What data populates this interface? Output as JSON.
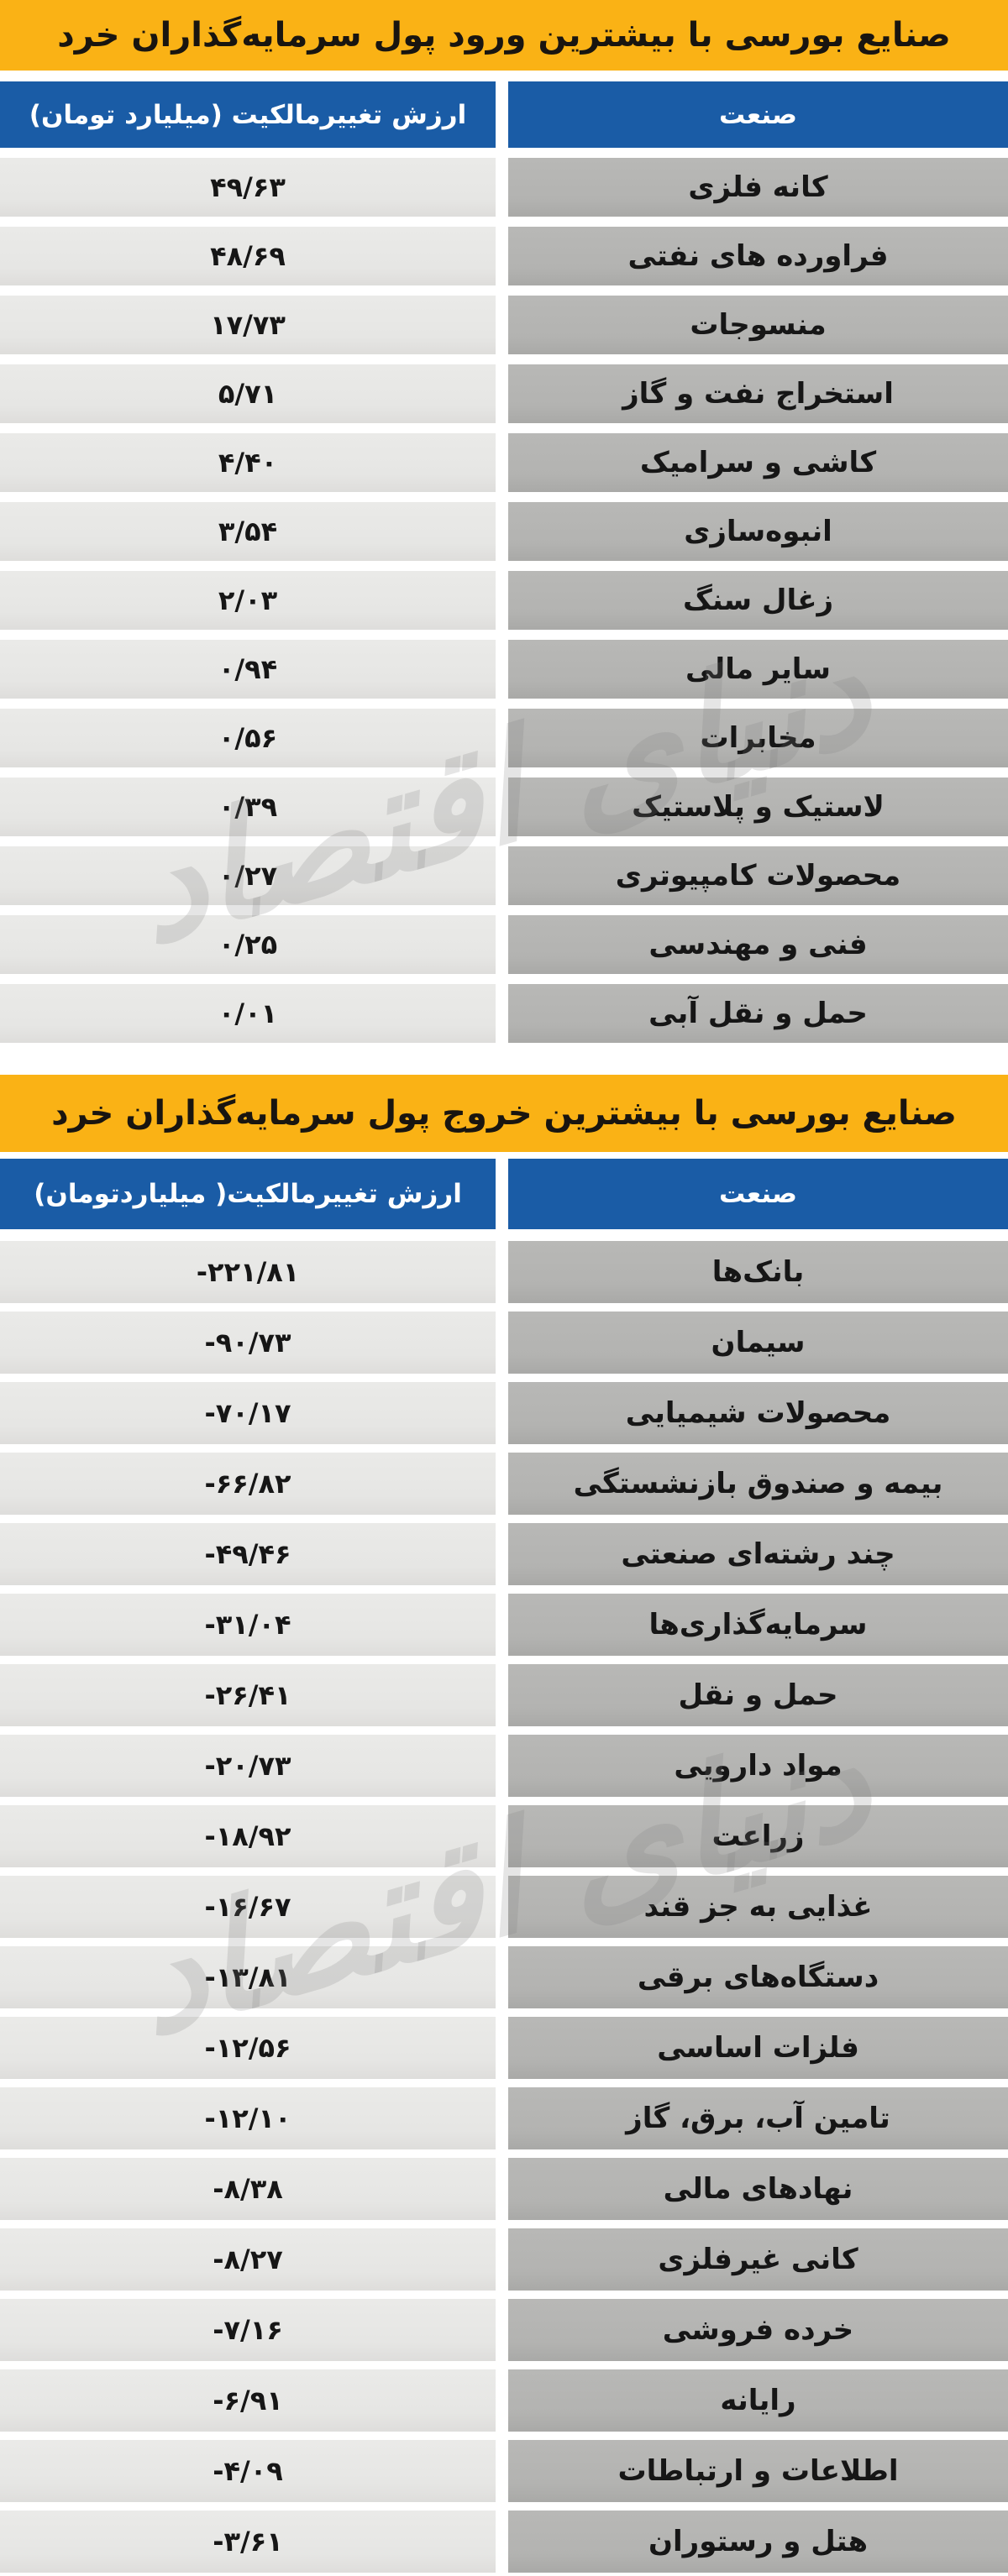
{
  "page": {
    "background": "#ffffff",
    "accent_yellow": "#FAB215",
    "accent_blue": "#1A5CA6",
    "industry_cell_grey": "#B3B3B1",
    "value_cell_grey": "#E6E6E4"
  },
  "watermark": {
    "text": "دنیای اقتصاد"
  },
  "tables": [
    {
      "title": "صنایع بورسی با بیشترین ورود پول سرمایه‌گذاران خرد",
      "headers": {
        "industry": "صنعت",
        "value": "ارزش تغییرمالکیت (میلیارد تومان)"
      },
      "rows": [
        {
          "industry": "کانه فلزی",
          "value": "۴۹/۶۳"
        },
        {
          "industry": "فراورده های نفتی",
          "value": "۴۸/۶۹"
        },
        {
          "industry": "منسوجات",
          "value": "۱۷/۷۳"
        },
        {
          "industry": "استخراج نفت و گاز",
          "value": "۵/۷۱"
        },
        {
          "industry": "کاشی و سرامیک",
          "value": "۴/۴۰"
        },
        {
          "industry": "انبوه‌سازی",
          "value": "۳/۵۴"
        },
        {
          "industry": "زغال سنگ",
          "value": "۲/۰۳"
        },
        {
          "industry": "سایر مالی",
          "value": "۰/۹۴"
        },
        {
          "industry": "مخابرات",
          "value": "۰/۵۶"
        },
        {
          "industry": "لاستیک و پلاستیک",
          "value": "۰/۳۹"
        },
        {
          "industry": "محصولات کامپیوتری",
          "value": "۰/۲۷"
        },
        {
          "industry": "فنی و مهندسی",
          "value": "۰/۲۵"
        },
        {
          "industry": "حمل و نقل آبی",
          "value": "۰/۰۱"
        }
      ]
    },
    {
      "title": "صنایع بورسی با بیشترین خروج پول سرمایه‌گذاران خرد",
      "headers": {
        "industry": "صنعت",
        "value": "ارزش تغییرمالکیت( میلیاردتومان)"
      },
      "rows": [
        {
          "industry": "بانک‌ها",
          "value": "-۲۲۱/۸۱"
        },
        {
          "industry": "سیمان",
          "value": "-۹۰/۷۳"
        },
        {
          "industry": "محصولات شیمیایی",
          "value": "-۷۰/۱۷"
        },
        {
          "industry": "بیمه و صندوق بازنشستگی",
          "value": "-۶۶/۸۲"
        },
        {
          "industry": "چند رشته‌ای صنعتی",
          "value": "-۴۹/۴۶"
        },
        {
          "industry": "سرمایه‌گذاری‌ها",
          "value": "-۳۱/۰۴"
        },
        {
          "industry": "حمل و نقل",
          "value": "-۲۶/۴۱"
        },
        {
          "industry": "مواد دارویی",
          "value": "-۲۰/۷۳"
        },
        {
          "industry": "زراعت",
          "value": "-۱۸/۹۲"
        },
        {
          "industry": "غذایی به جز قند",
          "value": "-۱۶/۶۷"
        },
        {
          "industry": "دستگاه‌های برقی",
          "value": "-۱۳/۸۱"
        },
        {
          "industry": "فلزات اساسی",
          "value": "-۱۲/۵۶"
        },
        {
          "industry": "تامین آب، برق، گاز",
          "value": "-۱۲/۱۰"
        },
        {
          "industry": "نهادهای مالی",
          "value": "-۸/۳۸"
        },
        {
          "industry": "کانی غیرفلزی",
          "value": "-۸/۲۷"
        },
        {
          "industry": "خرده فروشی",
          "value": "-۷/۱۶"
        },
        {
          "industry": "رایانه",
          "value": "-۶/۹۱"
        },
        {
          "industry": "اطلاعات و ارتباطات",
          "value": "-۴/۰۹"
        },
        {
          "industry": "هتل و رستوران",
          "value": "-۳/۶۱"
        }
      ]
    }
  ],
  "chart_data": [
    {
      "type": "table",
      "title": "صنایع بورسی با بیشترین ورود پول سرمایه‌گذاران خرد",
      "columns": [
        "صنعت",
        "ارزش تغییرمالکیت (میلیارد تومان)"
      ],
      "rows": [
        [
          "کانه فلزی",
          49.63
        ],
        [
          "فراورده های نفتی",
          48.69
        ],
        [
          "منسوجات",
          17.73
        ],
        [
          "استخراج نفت و گاز",
          5.71
        ],
        [
          "کاشی و سرامیک",
          4.4
        ],
        [
          "انبوه‌سازی",
          3.54
        ],
        [
          "زغال سنگ",
          2.03
        ],
        [
          "سایر مالی",
          0.94
        ],
        [
          "مخابرات",
          0.56
        ],
        [
          "لاستیک و پلاستیک",
          0.39
        ],
        [
          "محصولات کامپیوتری",
          0.27
        ],
        [
          "فنی و مهندسی",
          0.25
        ],
        [
          "حمل و نقل آبی",
          0.01
        ]
      ]
    },
    {
      "type": "table",
      "title": "صنایع بورسی با بیشترین خروج پول سرمایه‌گذاران خرد",
      "columns": [
        "صنعت",
        "ارزش تغییرمالکیت (میلیارد تومان)"
      ],
      "rows": [
        [
          "بانک‌ها",
          -221.81
        ],
        [
          "سیمان",
          -90.73
        ],
        [
          "محصولات شیمیایی",
          -70.17
        ],
        [
          "بیمه و صندوق بازنشستگی",
          -66.82
        ],
        [
          "چند رشته‌ای صنعتی",
          -49.46
        ],
        [
          "سرمایه‌گذاری‌ها",
          -31.04
        ],
        [
          "حمل و نقل",
          -26.41
        ],
        [
          "مواد دارویی",
          -20.73
        ],
        [
          "زراعت",
          -18.92
        ],
        [
          "غذایی به جز قند",
          -16.67
        ],
        [
          "دستگاه‌های برقی",
          -13.81
        ],
        [
          "فلزات اساسی",
          -12.56
        ],
        [
          "تامین آب، برق، گاز",
          -12.1
        ],
        [
          "نهادهای مالی",
          -8.38
        ],
        [
          "کانی غیرفلزی",
          -8.27
        ],
        [
          "خرده فروشی",
          -7.16
        ],
        [
          "رایانه",
          -6.91
        ],
        [
          "اطلاعات و ارتباطات",
          -4.09
        ],
        [
          "هتل و رستوران",
          -3.61
        ]
      ]
    }
  ]
}
